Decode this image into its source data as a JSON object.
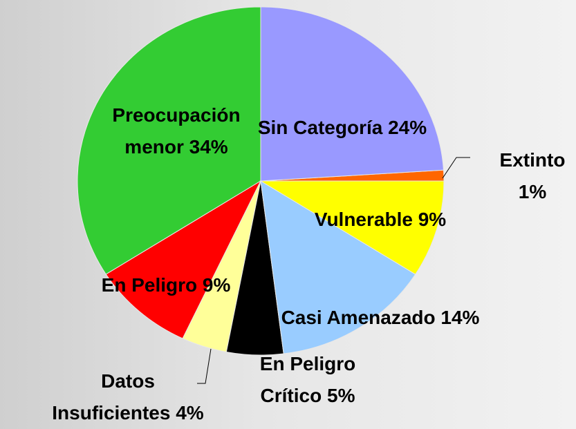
{
  "chart_data": {
    "type": "pie",
    "categories": [
      "Sin Categoría",
      "Extinto",
      "Vulnerable",
      "Casi Amenazado",
      "En Peligro Crítico",
      "Datos Insuficientes",
      "En Peligro",
      "Preocupación menor"
    ],
    "values": [
      24,
      1,
      9,
      14,
      5,
      4,
      9,
      34
    ],
    "value_labels": [
      "24%",
      "1%",
      "9%",
      "14%",
      "5%",
      "4%",
      "9%",
      "34%"
    ],
    "colors": [
      "#9999ff",
      "#ff6600",
      "#ffff00",
      "#99ccff",
      "#000000",
      "#ffff99",
      "#ff0000",
      "#33cc33"
    ]
  }
}
